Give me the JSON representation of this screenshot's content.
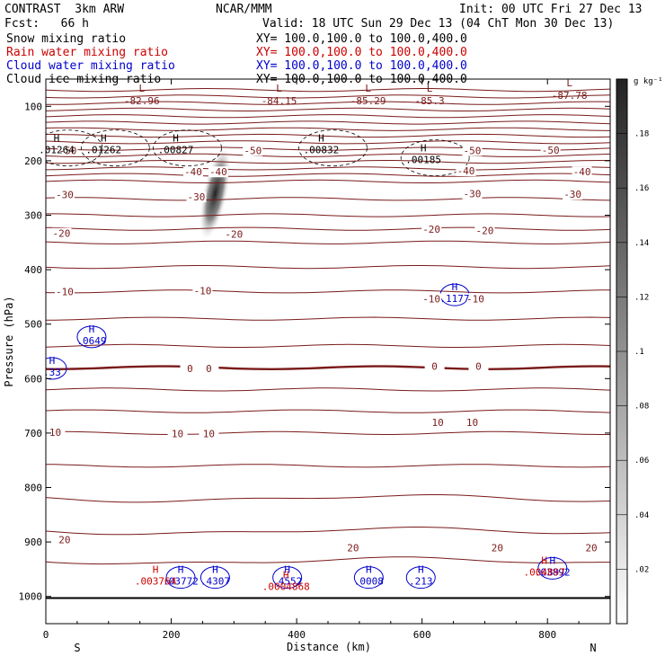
{
  "header": {
    "model": "CONTRAST  3km ARW",
    "org": "NCAR/MMM",
    "init": "Init: 00 UTC Fri 27 Dec 13",
    "fcst": "Fcst:   66 h",
    "valid": "Valid: 18 UTC Sun 29 Dec 13 (04 ChT Mon 30 Dec 13)"
  },
  "fields": [
    {
      "name": "Snow mixing ratio",
      "xy": "XY= 100.0,100.0 to 100.0,400.0",
      "color": "#000000"
    },
    {
      "name": "Rain water mixing ratio",
      "xy": "XY= 100.0,100.0 to 100.0,400.0",
      "color": "#cc0000"
    },
    {
      "name": "Cloud water mixing ratio",
      "xy": "XY= 100.0,100.0 to 100.0,400.0",
      "color": "#0000cc"
    },
    {
      "name": "Cloud ice mixing ratio",
      "xy": "XY= 100.0,100.0 to 100.0,400.0",
      "color": "#000000"
    }
  ],
  "colorbar": {
    "unit": "g kg⁻¹",
    "ticks": [
      ".02",
      ".04",
      ".06",
      ".08",
      ".1",
      ".12",
      ".14",
      ".16",
      ".18"
    ],
    "values": [
      0.02,
      0.04,
      0.06,
      0.08,
      0.1,
      0.12,
      0.14,
      0.16,
      0.18
    ],
    "range": [
      0.0,
      0.2
    ]
  },
  "chart_data": {
    "type": "cross-section contour",
    "xlabel": "Distance (km)",
    "ylabel": "Pressure (hPa)",
    "xlim": [
      0,
      900
    ],
    "ylim": [
      1050,
      50
    ],
    "x_ticks": [
      0,
      200,
      400,
      600,
      800
    ],
    "x_tick_labels": [
      "0",
      "200",
      "400",
      "600",
      "800"
    ],
    "y_ticks": [
      100,
      200,
      300,
      400,
      500,
      600,
      700,
      800,
      900,
      1000
    ],
    "y_tick_labels": [
      "100",
      "200",
      "300",
      "400",
      "500",
      "600",
      "700",
      "800",
      "900",
      "1000"
    ],
    "endpoints": {
      "left": "S",
      "right": "N"
    },
    "ground_pressure": 1003,
    "temperature_isotherms": [
      {
        "label": "-50",
        "positions": [
          [
            35,
            183
          ],
          [
            330,
            183
          ],
          [
            680,
            183
          ],
          [
            805,
            182
          ]
        ]
      },
      {
        "label": "-40",
        "positions": [
          [
            235,
            222
          ],
          [
            275,
            222
          ],
          [
            670,
            220
          ],
          [
            855,
            222
          ]
        ]
      },
      {
        "label": "-30",
        "positions": [
          [
            30,
            264
          ],
          [
            240,
            268
          ],
          [
            680,
            262
          ],
          [
            840,
            263
          ]
        ]
      },
      {
        "label": "-20",
        "positions": [
          [
            25,
            335
          ],
          [
            300,
            336
          ],
          [
            615,
            327
          ],
          [
            700,
            330
          ]
        ]
      },
      {
        "label": "-10",
        "positions": [
          [
            30,
            442
          ],
          [
            250,
            440
          ],
          [
            615,
            455
          ],
          [
            685,
            455
          ]
        ]
      },
      {
        "label": "0",
        "positions": [
          [
            230,
            583
          ],
          [
            260,
            583
          ],
          [
            620,
            579
          ],
          [
            690,
            579
          ]
        ]
      },
      {
        "label": "10",
        "positions": [
          [
            15,
            700
          ],
          [
            210,
            703
          ],
          [
            260,
            703
          ],
          [
            625,
            682
          ],
          [
            680,
            682
          ]
        ]
      },
      {
        "label": "20",
        "positions": [
          [
            30,
            897
          ],
          [
            490,
            912
          ],
          [
            720,
            912
          ],
          [
            870,
            912
          ]
        ]
      }
    ],
    "extrema": [
      {
        "type": "L",
        "value": "-82.96",
        "x": 153,
        "p": 78
      },
      {
        "type": "L",
        "value": "-84.15",
        "x": 372,
        "p": 78
      },
      {
        "type": "L",
        "value": "-85.29",
        "x": 514,
        "p": 78
      },
      {
        "type": "L",
        "value": "-85.3",
        "x": 612,
        "p": 78
      },
      {
        "type": "L",
        "value": "-87.78",
        "x": 835,
        "p": 68
      }
    ],
    "cloud_ice_maxima": [
      {
        "value": ".01264",
        "x": 10,
        "p": 170
      },
      {
        "value": ".01262",
        "x": 85,
        "p": 170
      },
      {
        "value": ".00827",
        "x": 200,
        "p": 170
      },
      {
        "value": ".00832",
        "x": 432,
        "p": 170
      },
      {
        "value": ".00185",
        "x": 595,
        "p": 188
      }
    ],
    "cloud_water_maxima": [
      {
        "value": ".0649",
        "x": 73,
        "p": 520
      },
      {
        "value": ".33",
        "x": 10,
        "p": 578
      },
      {
        "value": ".1177",
        "x": 652,
        "p": 443
      },
      {
        "value": ".03772",
        "x": 215,
        "p": 962
      },
      {
        "value": ".4307",
        "x": 270,
        "p": 962
      },
      {
        "value": ".4552",
        "x": 385,
        "p": 962
      },
      {
        "value": ".0008",
        "x": 515,
        "p": 962
      },
      {
        "value": ".213",
        "x": 598,
        "p": 962
      },
      {
        "value": ".03892",
        "x": 808,
        "p": 945
      }
    ],
    "rain_maxima": [
      {
        "value": ".003764",
        "x": 175,
        "p": 962
      },
      {
        "value": ".0004868",
        "x": 383,
        "p": 972
      },
      {
        "value": ".004897",
        "x": 795,
        "p": 945
      }
    ],
    "snow_max": {
      "value": 0.18,
      "x": 270,
      "p_top": 170,
      "p_bottom": 350
    }
  }
}
